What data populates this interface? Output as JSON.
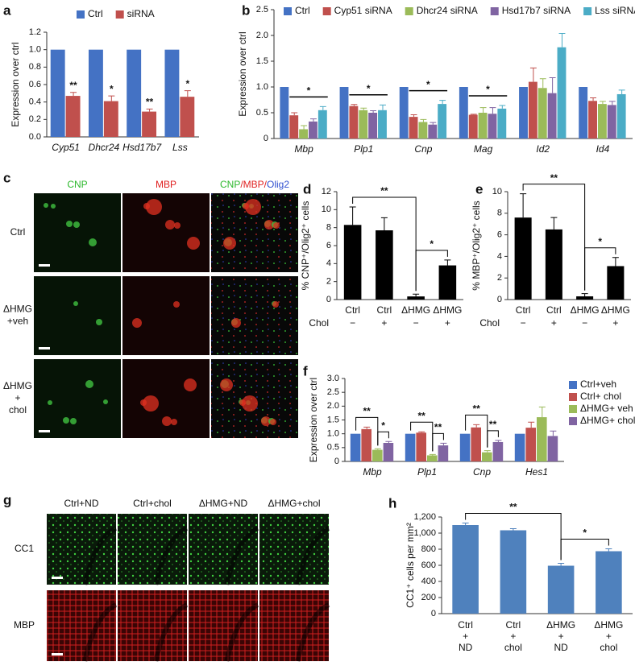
{
  "panels": [
    "a",
    "b",
    "c",
    "d",
    "e",
    "f",
    "g",
    "h"
  ],
  "images": {
    "c": {
      "columns": [
        [
          {
            "text": "CNP",
            "color": "#2db82d"
          }
        ],
        [
          {
            "text": "MBP",
            "color": "#e02020"
          }
        ],
        [
          {
            "text": "CNP",
            "color": "#2db82d"
          },
          {
            "text": "/MBP/",
            "color": "#e02020"
          },
          {
            "text": "Olig2",
            "color": "#3050d0"
          }
        ]
      ],
      "rows": [
        [
          "Ctrl"
        ],
        [
          "ΔHMG",
          "+veh"
        ],
        [
          "ΔHMG",
          "+",
          "chol"
        ]
      ]
    },
    "g": {
      "columns": [
        "Ctrl+ND",
        "Ctrl+chol",
        "ΔHMG+ND",
        "ΔHMG+chol"
      ],
      "rows": [
        {
          "text": "CC1",
          "color": "#2db82d"
        },
        {
          "text": "MBP",
          "color": "#e02020"
        }
      ]
    }
  },
  "chart_data": [
    {
      "type": "bar",
      "ylabel": "Expression over ctrl",
      "categories": [
        "Cyp51",
        "Dhcr24",
        "Hsd17b7",
        "Lss"
      ],
      "italic_categories": true,
      "series": [
        {
          "name": "Ctrl",
          "color": "#4472c4",
          "values": [
            1,
            1,
            1,
            1
          ]
        },
        {
          "name": "siRNA",
          "color": "#c0504d",
          "values": [
            0.47,
            0.41,
            0.29,
            0.46
          ],
          "errors": [
            0.04,
            0.06,
            0.03,
            0.07
          ],
          "annotations": [
            "**",
            "*",
            "**",
            "*"
          ]
        }
      ],
      "ylim": [
        0,
        1.2
      ],
      "yticks": [
        {
          "value": 0,
          "label": "0.0"
        },
        0.2,
        0.4,
        0.6,
        0.8,
        {
          "value": 1,
          "label": "1.0"
        },
        1.2
      ],
      "legend": "top"
    },
    {
      "type": "bar",
      "ylabel": "Expression over ctrl",
      "categories": [
        "Mbp",
        "Plp1",
        "Cnp",
        "Mag",
        "Id2",
        "Id4"
      ],
      "italic_categories": true,
      "series": [
        {
          "name": "Ctrl",
          "color": "#4472c4",
          "values": [
            1,
            1,
            1,
            1,
            1,
            1
          ]
        },
        {
          "name": "Cyp51 siRNA",
          "color": "#c0504d",
          "values": [
            0.45,
            0.63,
            0.42,
            0.46,
            1.1,
            0.73
          ],
          "errors": [
            0.05,
            0.03,
            0.04,
            0.01,
            0.27,
            0.06
          ]
        },
        {
          "name": "Dhcr24 siRNA",
          "color": "#9bbb59",
          "values": [
            0.18,
            0.55,
            0.32,
            0.5,
            0.98,
            0.67
          ],
          "errors": [
            0.07,
            0.04,
            0.05,
            0.1,
            0.18,
            0.05
          ]
        },
        {
          "name": "Hsd17b7 siRNA",
          "color": "#8064a2",
          "values": [
            0.33,
            0.5,
            0.27,
            0.48,
            0.88,
            0.65
          ],
          "errors": [
            0.05,
            0.04,
            0.04,
            0.12,
            0.3,
            0.07
          ]
        },
        {
          "name": "Lss siRNA",
          "color": "#4bacc6",
          "values": [
            0.55,
            0.55,
            0.67,
            0.58,
            1.77,
            0.86
          ],
          "errors": [
            0.07,
            0.1,
            0.07,
            0.06,
            0.27,
            0.08
          ]
        }
      ],
      "group_annotations": [
        "*",
        "*",
        "*",
        "*",
        null,
        null
      ],
      "ylim": [
        0,
        2.5
      ],
      "yticks": [
        0,
        0.5,
        {
          "value": 1,
          "label": "1.0"
        },
        1.5,
        {
          "value": 2,
          "label": "2.0"
        },
        2.5
      ],
      "legend": "top"
    },
    {
      "type": "bar",
      "ylabel": "% CNP⁺/Olig2⁺ cells",
      "categories": [
        "Ctrl",
        "Ctrl",
        "ΔHMG",
        "ΔHMG"
      ],
      "treatment_label": "Chol",
      "treatment": [
        "−",
        "+",
        "−",
        "+"
      ],
      "values": [
        8.3,
        7.7,
        0.35,
        3.8
      ],
      "errors": [
        2.0,
        1.4,
        0.25,
        0.6
      ],
      "color": "#000000",
      "brackets": [
        {
          "from": 0,
          "to": 2,
          "label": "**"
        },
        {
          "from": 2,
          "to": 3,
          "label": "*"
        }
      ],
      "ylim": [
        0,
        12
      ],
      "yticks": [
        0,
        2,
        4,
        6,
        8,
        10,
        12
      ]
    },
    {
      "type": "bar",
      "ylabel": "% MBP⁺/Olig2⁺ cells",
      "categories": [
        "Ctrl",
        "Ctrl",
        "ΔHMG",
        "ΔHMG"
      ],
      "treatment_label": "Chol",
      "treatment": [
        "−",
        "+",
        "−",
        "+"
      ],
      "values": [
        7.6,
        6.5,
        0.3,
        3.1
      ],
      "errors": [
        2.2,
        1.1,
        0.25,
        0.8
      ],
      "color": "#000000",
      "brackets": [
        {
          "from": 0,
          "to": 2,
          "label": "**"
        },
        {
          "from": 2,
          "to": 3,
          "label": "*"
        }
      ],
      "ylim": [
        0,
        10
      ],
      "yticks": [
        0,
        2,
        4,
        6,
        8,
        10
      ]
    },
    {
      "type": "bar",
      "ylabel": "Expression over ctrl",
      "categories": [
        "Mbp",
        "Plp1",
        "Cnp",
        "Hes1"
      ],
      "italic_categories": true,
      "series": [
        {
          "name": "Ctrl+veh",
          "color": "#4472c4",
          "values": [
            1,
            1,
            1,
            1
          ]
        },
        {
          "name": "Ctrl+ chol",
          "color": "#c0504d",
          "values": [
            1.17,
            1.04,
            1.23,
            1.22
          ],
          "errors": [
            0.07,
            0.03,
            0.1,
            0.2
          ]
        },
        {
          "name": "ΔHMG+ veh",
          "color": "#9bbb59",
          "values": [
            0.42,
            0.22,
            0.33,
            1.6
          ],
          "errors": [
            0.04,
            0.03,
            0.06,
            0.37
          ]
        },
        {
          "name": "ΔHMG+ chol",
          "color": "#8064a2",
          "values": [
            0.67,
            0.58,
            0.7,
            0.92
          ],
          "errors": [
            0.05,
            0.08,
            0.06,
            0.18
          ]
        }
      ],
      "brackets": [
        {
          "category": 0,
          "from": 0,
          "to": 2,
          "label": "**"
        },
        {
          "category": 0,
          "from": 2,
          "to": 3,
          "label": "*"
        },
        {
          "category": 1,
          "from": 0,
          "to": 2,
          "label": "**"
        },
        {
          "category": 1,
          "from": 2,
          "to": 3,
          "label": "**"
        },
        {
          "category": 2,
          "from": 0,
          "to": 2,
          "label": "**"
        },
        {
          "category": 2,
          "from": 2,
          "to": 3,
          "label": "**"
        }
      ],
      "ylim": [
        0,
        3
      ],
      "yticks": [
        0,
        0.5,
        {
          "value": 1,
          "label": "1.0"
        },
        1.5,
        {
          "value": 2,
          "label": "2.0"
        },
        2.5,
        {
          "value": 3,
          "label": "3.0"
        }
      ],
      "legend": "right"
    },
    {
      "type": "bar",
      "ylabel": "CC1⁺ cells per mm²",
      "categories": [
        [
          "Ctrl",
          "+",
          "ND"
        ],
        [
          "Ctrl",
          "+",
          "chol"
        ],
        [
          "ΔHMG",
          "+",
          "ND"
        ],
        [
          "ΔHMG",
          "+",
          "chol"
        ]
      ],
      "values": [
        1100,
        1035,
        595,
        775
      ],
      "errors": [
        25,
        20,
        30,
        30
      ],
      "color": "#4f81bd",
      "brackets": [
        {
          "from": 0,
          "to": 2,
          "label": "**"
        },
        {
          "from": 2,
          "to": 3,
          "label": "*"
        }
      ],
      "ylim": [
        0,
        1200
      ],
      "yticks": [
        0,
        200,
        400,
        600,
        800,
        {
          "value": 1000,
          "label": "1,000"
        },
        {
          "value": 1200,
          "label": "1,200"
        }
      ]
    }
  ]
}
